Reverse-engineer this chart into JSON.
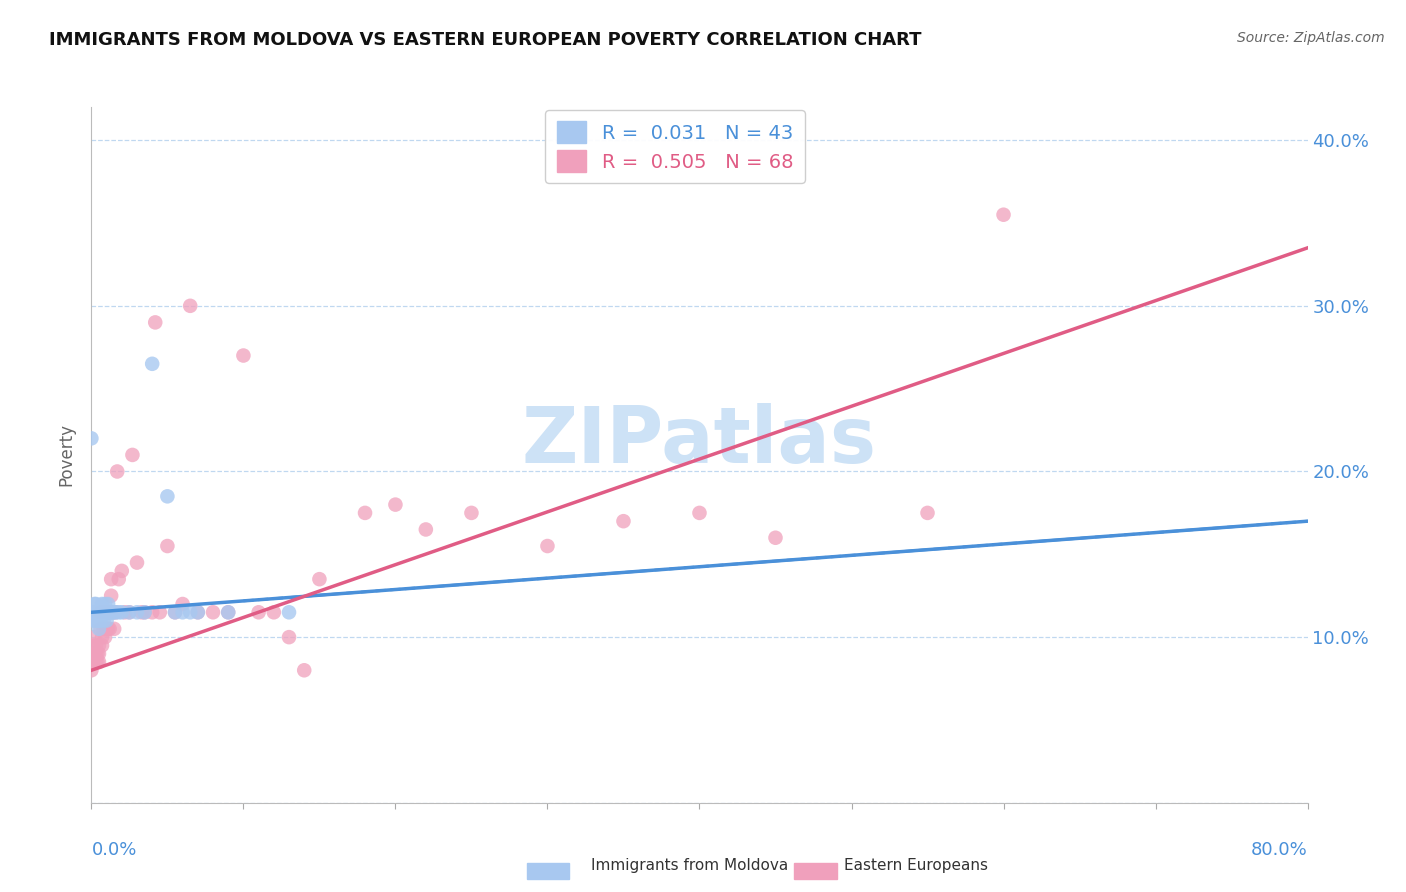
{
  "title": "IMMIGRANTS FROM MOLDOVA VS EASTERN EUROPEAN POVERTY CORRELATION CHART",
  "source": "Source: ZipAtlas.com",
  "ylabel": "Poverty",
  "y_ticks": [
    0.0,
    0.1,
    0.2,
    0.3,
    0.4
  ],
  "y_tick_labels": [
    "",
    "10.0%",
    "20.0%",
    "30.0%",
    "40.0%"
  ],
  "xlim": [
    0.0,
    0.8
  ],
  "ylim": [
    0.0,
    0.42
  ],
  "R1": 0.031,
  "N1": 43,
  "R2": 0.505,
  "N2": 68,
  "scatter1_color": "#a8c8f0",
  "scatter2_color": "#f0a0bc",
  "trendline1_color": "#4a90d9",
  "trendline2_color": "#e05c85",
  "watermark": "ZIPatlas",
  "watermark_color": "#c8dff5",
  "legend1_color": "#a8c8f0",
  "legend2_color": "#f0a0bc",
  "legend1_label": "Immigrants from Moldova",
  "legend2_label": "Eastern Europeans",
  "blue_scatter_x": [
    0.001,
    0.001,
    0.002,
    0.002,
    0.003,
    0.003,
    0.003,
    0.004,
    0.004,
    0.005,
    0.005,
    0.005,
    0.006,
    0.006,
    0.007,
    0.007,
    0.008,
    0.008,
    0.009,
    0.009,
    0.01,
    0.01,
    0.011,
    0.011,
    0.012,
    0.013,
    0.014,
    0.015,
    0.016,
    0.018,
    0.02,
    0.025,
    0.03,
    0.035,
    0.04,
    0.05,
    0.055,
    0.06,
    0.065,
    0.07,
    0.09,
    0.13,
    0.0
  ],
  "blue_scatter_y": [
    0.115,
    0.11,
    0.115,
    0.12,
    0.11,
    0.115,
    0.12,
    0.115,
    0.11,
    0.115,
    0.11,
    0.105,
    0.115,
    0.11,
    0.115,
    0.12,
    0.11,
    0.115,
    0.12,
    0.115,
    0.115,
    0.11,
    0.115,
    0.12,
    0.115,
    0.115,
    0.115,
    0.115,
    0.115,
    0.115,
    0.115,
    0.115,
    0.115,
    0.115,
    0.265,
    0.185,
    0.115,
    0.115,
    0.115,
    0.115,
    0.115,
    0.115,
    0.22
  ],
  "pink_scatter_x": [
    0.001,
    0.001,
    0.001,
    0.002,
    0.002,
    0.003,
    0.003,
    0.003,
    0.004,
    0.004,
    0.005,
    0.005,
    0.005,
    0.006,
    0.006,
    0.007,
    0.007,
    0.008,
    0.008,
    0.009,
    0.009,
    0.01,
    0.01,
    0.011,
    0.011,
    0.012,
    0.012,
    0.013,
    0.013,
    0.014,
    0.015,
    0.016,
    0.017,
    0.018,
    0.02,
    0.022,
    0.025,
    0.027,
    0.03,
    0.033,
    0.035,
    0.04,
    0.042,
    0.045,
    0.05,
    0.055,
    0.06,
    0.065,
    0.07,
    0.08,
    0.09,
    0.1,
    0.11,
    0.12,
    0.13,
    0.14,
    0.15,
    0.18,
    0.2,
    0.22,
    0.25,
    0.3,
    0.35,
    0.4,
    0.45,
    0.55,
    0.6,
    0.0
  ],
  "pink_scatter_y": [
    0.095,
    0.09,
    0.085,
    0.1,
    0.09,
    0.095,
    0.09,
    0.085,
    0.09,
    0.085,
    0.095,
    0.09,
    0.085,
    0.115,
    0.105,
    0.1,
    0.095,
    0.115,
    0.105,
    0.105,
    0.1,
    0.115,
    0.105,
    0.115,
    0.105,
    0.115,
    0.105,
    0.135,
    0.125,
    0.115,
    0.105,
    0.115,
    0.2,
    0.135,
    0.14,
    0.115,
    0.115,
    0.21,
    0.145,
    0.115,
    0.115,
    0.115,
    0.29,
    0.115,
    0.155,
    0.115,
    0.12,
    0.3,
    0.115,
    0.115,
    0.115,
    0.27,
    0.115,
    0.115,
    0.1,
    0.08,
    0.135,
    0.175,
    0.18,
    0.165,
    0.175,
    0.155,
    0.17,
    0.175,
    0.16,
    0.175,
    0.355,
    0.08
  ],
  "trendline_pink_x0": 0.0,
  "trendline_pink_y0": 0.08,
  "trendline_pink_x1": 0.8,
  "trendline_pink_y1": 0.335,
  "trendline_blue_x0": 0.0,
  "trendline_blue_y0": 0.115,
  "trendline_blue_x1": 0.8,
  "trendline_blue_y1": 0.17
}
